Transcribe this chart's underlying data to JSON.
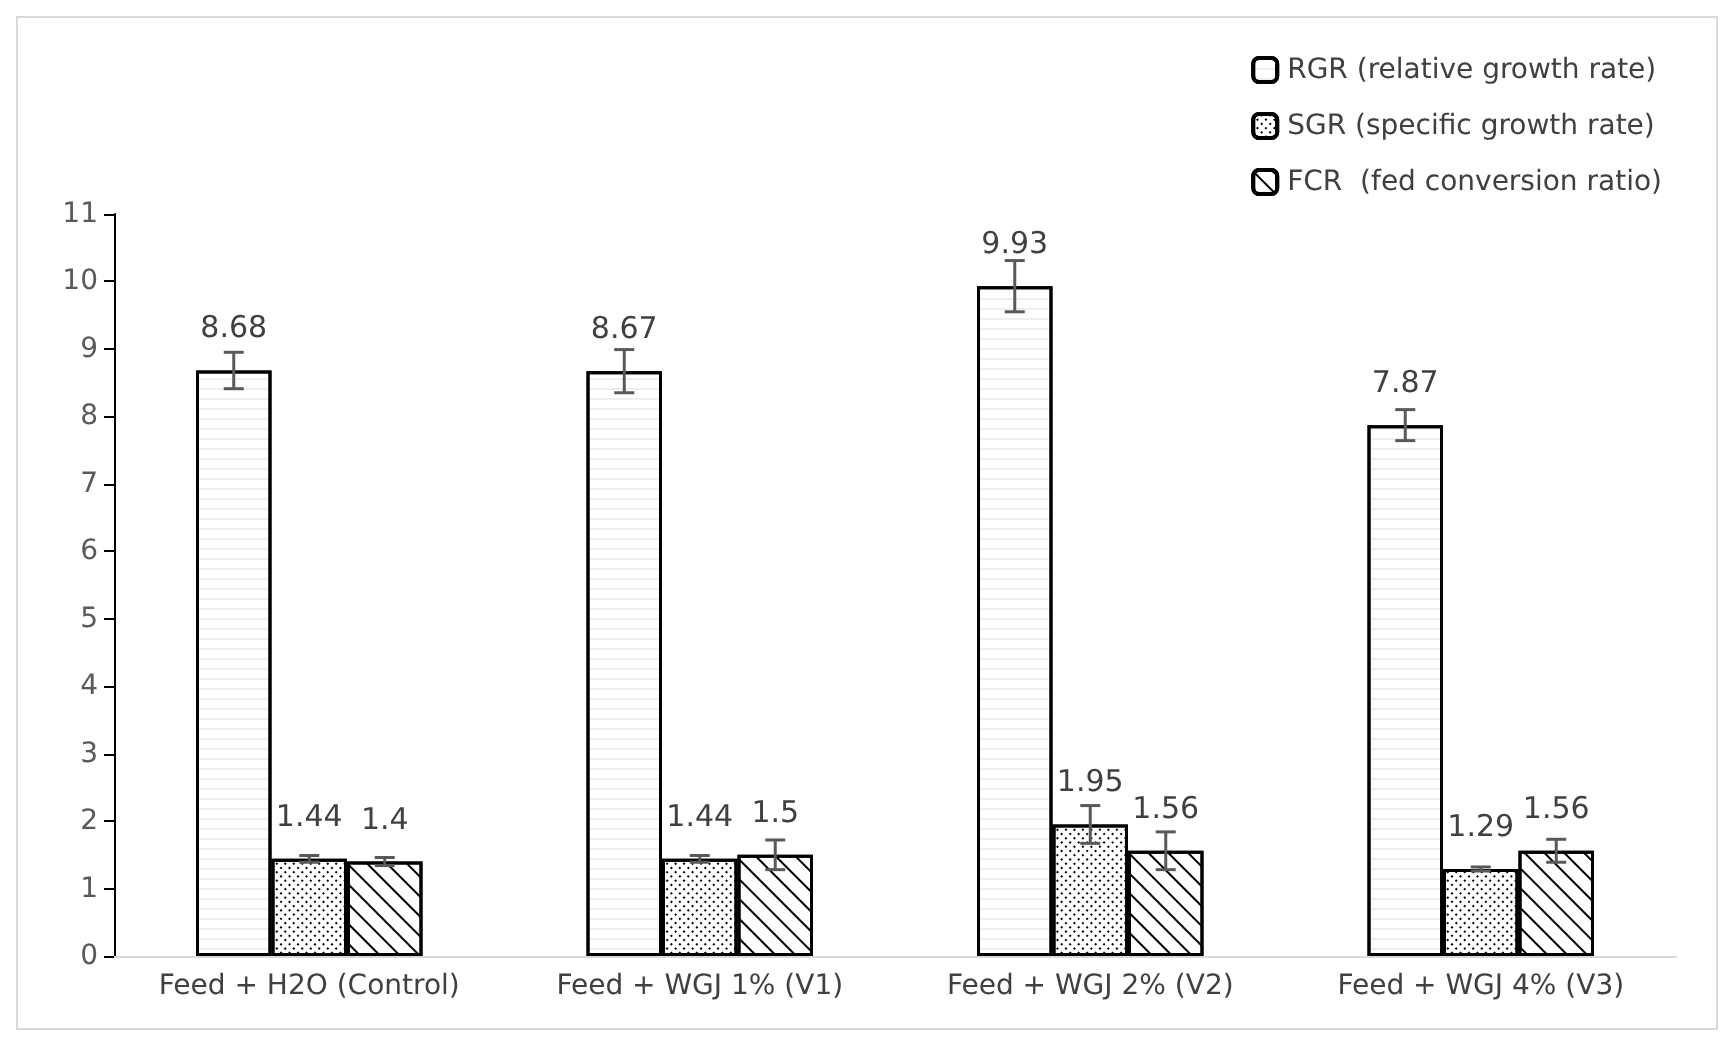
{
  "chart_data": {
    "type": "bar",
    "categories": [
      "Feed + H2O (Control)",
      "Feed + WGJ 1% (V1)",
      "Feed + WGJ 2% (V2)",
      "Feed + WGJ 4% (V3)"
    ],
    "series": [
      {
        "name": "RGR (relative growth rate)",
        "color": "#ffffff",
        "values": [
          8.68,
          8.67,
          9.93,
          7.87
        ],
        "errors": [
          0.27,
          0.32,
          0.38,
          0.23
        ]
      },
      {
        "name": "SGR (specific growth rate)",
        "color": "#ffffff",
        "values": [
          1.44,
          1.44,
          1.95,
          1.29
        ],
        "errors": [
          0.05,
          0.05,
          0.28,
          0.03
        ]
      },
      {
        "name": "FCR  (fed conversion ratio)",
        "color": "#ffffff",
        "values": [
          1.4,
          1.5,
          1.56,
          1.56
        ],
        "errors": [
          0.06,
          0.22,
          0.28,
          0.17
        ]
      }
    ],
    "ylim": [
      0,
      11
    ],
    "yticks": [
      0,
      1,
      2,
      3,
      4,
      5,
      6,
      7,
      8,
      9,
      10,
      11
    ],
    "grid": false,
    "legend": "top right",
    "data_labels": true
  }
}
